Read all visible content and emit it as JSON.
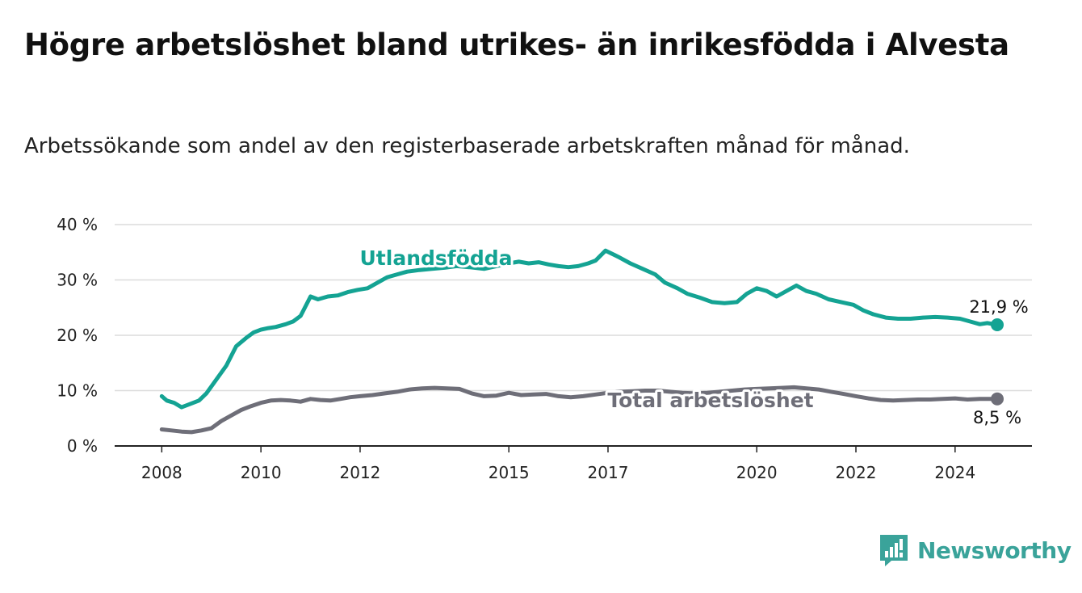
{
  "title": "Högre arbetslöshet bland utrikes- än inrikesfödda i Alvesta",
  "subtitle": "Arbetssökande som andel av den registerbaserade arbetskraften månad för månad.",
  "brand": {
    "name": "Newsworthy",
    "icon": "newsworthy-logo-icon",
    "color": "#3aa39a"
  },
  "chart_data": {
    "type": "line",
    "ylim": [
      0,
      40
    ],
    "y_ticks": [
      0,
      10,
      20,
      30,
      40
    ],
    "y_tick_labels": [
      "0 %",
      "10 %",
      "20 %",
      "30 %",
      "40 %"
    ],
    "x_ticks": [
      2008,
      2010,
      2012,
      2015,
      2017,
      2020,
      2022,
      2024
    ],
    "x_tick_labels": [
      "2008",
      "2010",
      "2012",
      "2015",
      "2017",
      "2020",
      "2022",
      "2024"
    ],
    "grid": true,
    "series": [
      {
        "name": "Utlandsfödda",
        "color": "#14a393",
        "end_label": "21,9 %",
        "x": [
          2008.0,
          2008.1,
          2008.25,
          2008.4,
          2008.55,
          2008.75,
          2008.9,
          2009.1,
          2009.3,
          2009.5,
          2009.7,
          2009.85,
          2010.0,
          2010.15,
          2010.3,
          2010.5,
          2010.65,
          2010.8,
          2011.0,
          2011.15,
          2011.35,
          2011.55,
          2011.75,
          2011.95,
          2012.15,
          2012.35,
          2012.55,
          2012.75,
          2012.95,
          2013.2,
          2013.45,
          2013.7,
          2013.95,
          2014.2,
          2014.5,
          2014.75,
          2015.0,
          2015.2,
          2015.4,
          2015.6,
          2015.8,
          2016.0,
          2016.2,
          2016.4,
          2016.6,
          2016.75,
          2016.95,
          2017.2,
          2017.45,
          2017.7,
          2017.95,
          2018.15,
          2018.4,
          2018.6,
          2018.85,
          2019.1,
          2019.35,
          2019.6,
          2019.8,
          2020.0,
          2020.2,
          2020.4,
          2020.6,
          2020.8,
          2021.0,
          2021.2,
          2021.45,
          2021.7,
          2021.95,
          2022.15,
          2022.35,
          2022.6,
          2022.85,
          2023.1,
          2023.35,
          2023.6,
          2023.85,
          2024.1,
          2024.3,
          2024.5,
          2024.65,
          2024.85
        ],
        "values": [
          9.0,
          8.2,
          7.8,
          7.0,
          7.5,
          8.2,
          9.5,
          12.0,
          14.5,
          18.0,
          19.5,
          20.5,
          21.0,
          21.3,
          21.5,
          22.0,
          22.5,
          23.5,
          27.0,
          26.5,
          27.0,
          27.2,
          27.8,
          28.2,
          28.5,
          29.5,
          30.5,
          31.0,
          31.5,
          31.8,
          32.0,
          32.2,
          32.5,
          32.3,
          32.0,
          32.5,
          33.0,
          33.3,
          33.0,
          33.2,
          32.8,
          32.5,
          32.3,
          32.5,
          33.0,
          33.5,
          35.3,
          34.2,
          33.0,
          32.0,
          31.0,
          29.5,
          28.5,
          27.5,
          26.8,
          26.0,
          25.8,
          26.0,
          27.5,
          28.5,
          28.0,
          27.0,
          28.0,
          29.0,
          28.0,
          27.5,
          26.5,
          26.0,
          25.5,
          24.5,
          23.8,
          23.2,
          23.0,
          23.0,
          23.2,
          23.3,
          23.2,
          23.0,
          22.5,
          22.0,
          22.2,
          21.9
        ]
      },
      {
        "name": "Total arbetslöshet",
        "color": "#6e6e78",
        "end_label": "8,5 %",
        "x": [
          2008.0,
          2008.2,
          2008.4,
          2008.6,
          2008.8,
          2009.0,
          2009.2,
          2009.4,
          2009.6,
          2009.8,
          2010.0,
          2010.2,
          2010.4,
          2010.6,
          2010.8,
          2011.0,
          2011.2,
          2011.4,
          2011.6,
          2011.8,
          2012.0,
          2012.25,
          2012.5,
          2012.75,
          2013.0,
          2013.25,
          2013.5,
          2013.75,
          2014.0,
          2014.25,
          2014.5,
          2014.75,
          2015.0,
          2015.25,
          2015.5,
          2015.75,
          2016.0,
          2016.25,
          2016.5,
          2016.75,
          2017.0,
          2017.25,
          2017.5,
          2017.75,
          2018.0,
          2018.25,
          2018.5,
          2018.75,
          2019.0,
          2019.25,
          2019.5,
          2019.75,
          2020.0,
          2020.25,
          2020.5,
          2020.75,
          2021.0,
          2021.25,
          2021.5,
          2021.75,
          2022.0,
          2022.25,
          2022.5,
          2022.75,
          2023.0,
          2023.25,
          2023.5,
          2023.75,
          2024.0,
          2024.25,
          2024.5,
          2024.85
        ],
        "values": [
          3.0,
          2.8,
          2.6,
          2.5,
          2.8,
          3.2,
          4.5,
          5.5,
          6.5,
          7.2,
          7.8,
          8.2,
          8.3,
          8.2,
          8.0,
          8.5,
          8.3,
          8.2,
          8.5,
          8.8,
          9.0,
          9.2,
          9.5,
          9.8,
          10.2,
          10.4,
          10.5,
          10.4,
          10.3,
          9.5,
          9.0,
          9.1,
          9.6,
          9.2,
          9.3,
          9.4,
          9.0,
          8.8,
          9.0,
          9.3,
          9.6,
          9.8,
          9.9,
          10.0,
          10.0,
          9.8,
          9.6,
          9.5,
          9.6,
          9.8,
          10.0,
          10.2,
          10.3,
          10.4,
          10.5,
          10.6,
          10.4,
          10.2,
          9.8,
          9.4,
          9.0,
          8.6,
          8.3,
          8.2,
          8.3,
          8.4,
          8.4,
          8.5,
          8.6,
          8.4,
          8.5,
          8.5
        ]
      }
    ]
  }
}
